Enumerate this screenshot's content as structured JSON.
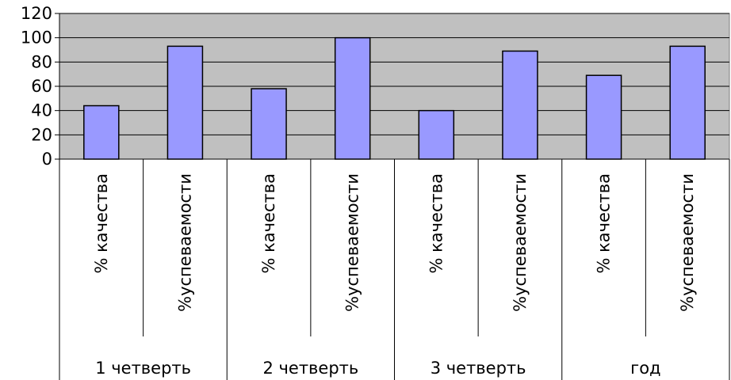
{
  "chart_data": {
    "type": "bar",
    "groups": [
      "1 четверть",
      "2 четверть",
      "3 четверть",
      "год"
    ],
    "categories": [
      {
        "group": "1 четверть",
        "label": "% качества",
        "value": 44
      },
      {
        "group": "1 четверть",
        "label": "%успеваемости",
        "value": 93
      },
      {
        "group": "2 четверть",
        "label": "% качества",
        "value": 58
      },
      {
        "group": "2 четверть",
        "label": "%успеваемости",
        "value": 100
      },
      {
        "group": "3 четверть",
        "label": "% качества",
        "value": 40
      },
      {
        "group": "3 четверть",
        "label": "%успеваемости",
        "value": 89
      },
      {
        "group": "год",
        "label": "% качества",
        "value": 69
      },
      {
        "group": "год",
        "label": "%успеваемости",
        "value": 93
      }
    ],
    "ylim": [
      0,
      120
    ],
    "yticks": [
      "0",
      "20",
      "40",
      "60",
      "80",
      "100",
      "120"
    ],
    "grid": true,
    "legend": "none",
    "colors": {
      "bar": "#9999FF",
      "plot_background": "#C0C0C0",
      "gridline": "#000000"
    }
  }
}
